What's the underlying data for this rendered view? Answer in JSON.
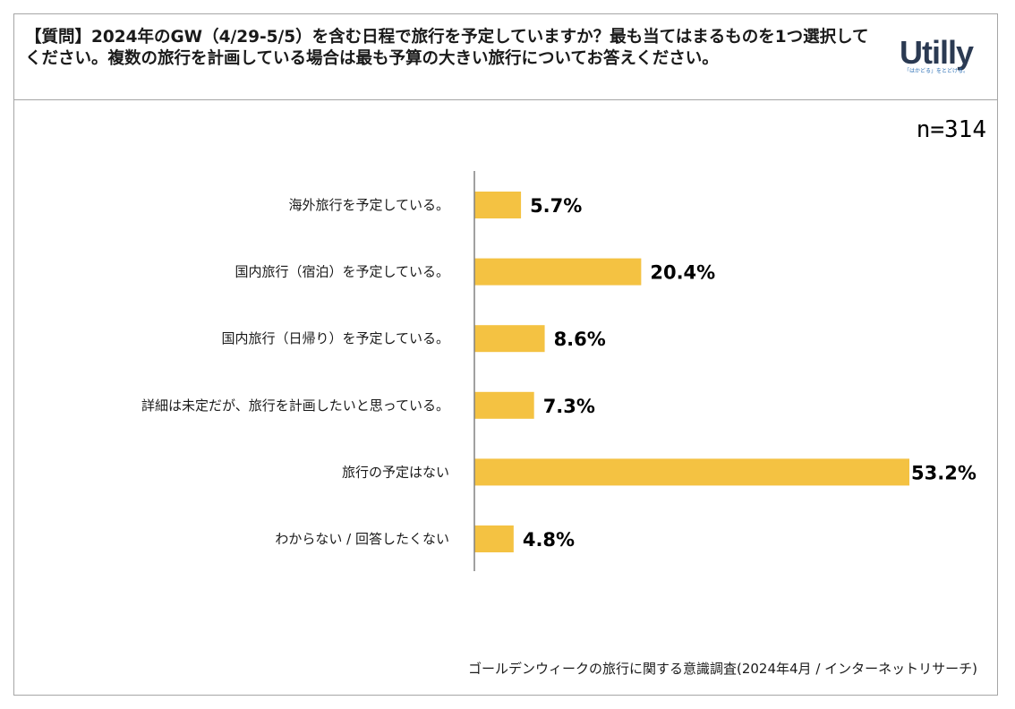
{
  "question": "【質問】2024年のGW（4/29-5/5）を含む日程で旅行を予定していますか？最も当てはまるものを1つ選択してください。複数の旅行を計画している場合は最も予算の大きい旅行についてお答えください。",
  "logo": {
    "wordmark": "Utilly",
    "tagline": "「はかどる」をとどける。"
  },
  "sample_size": "n=314",
  "source": "ゴールデンウィークの旅行に関する意識調査(2024年4月 / インターネットリサーチ)",
  "colors": {
    "bar": "#F4C242",
    "axis": "#808080",
    "frame": "#a6a6a6"
  },
  "chart_data": {
    "type": "bar",
    "orientation": "horizontal",
    "categories": [
      "海外旅行を予定している。",
      "国内旅行（宿泊）を予定している。",
      "国内旅行（日帰り）を予定している。",
      "詳細は未定だが、旅行を計画したいと思っている。",
      "旅行の予定はない",
      "わからない / 回答したくない"
    ],
    "values": [
      5.7,
      20.4,
      8.6,
      7.3,
      53.2,
      4.8
    ],
    "value_labels": [
      "5.7%",
      "20.4%",
      "8.6%",
      "7.3%",
      "53.2%",
      "4.8%"
    ],
    "unit": "%",
    "xlim": [
      0,
      53.2
    ],
    "title": "",
    "xlabel": "",
    "ylabel": "",
    "grid": false,
    "legend": false
  }
}
